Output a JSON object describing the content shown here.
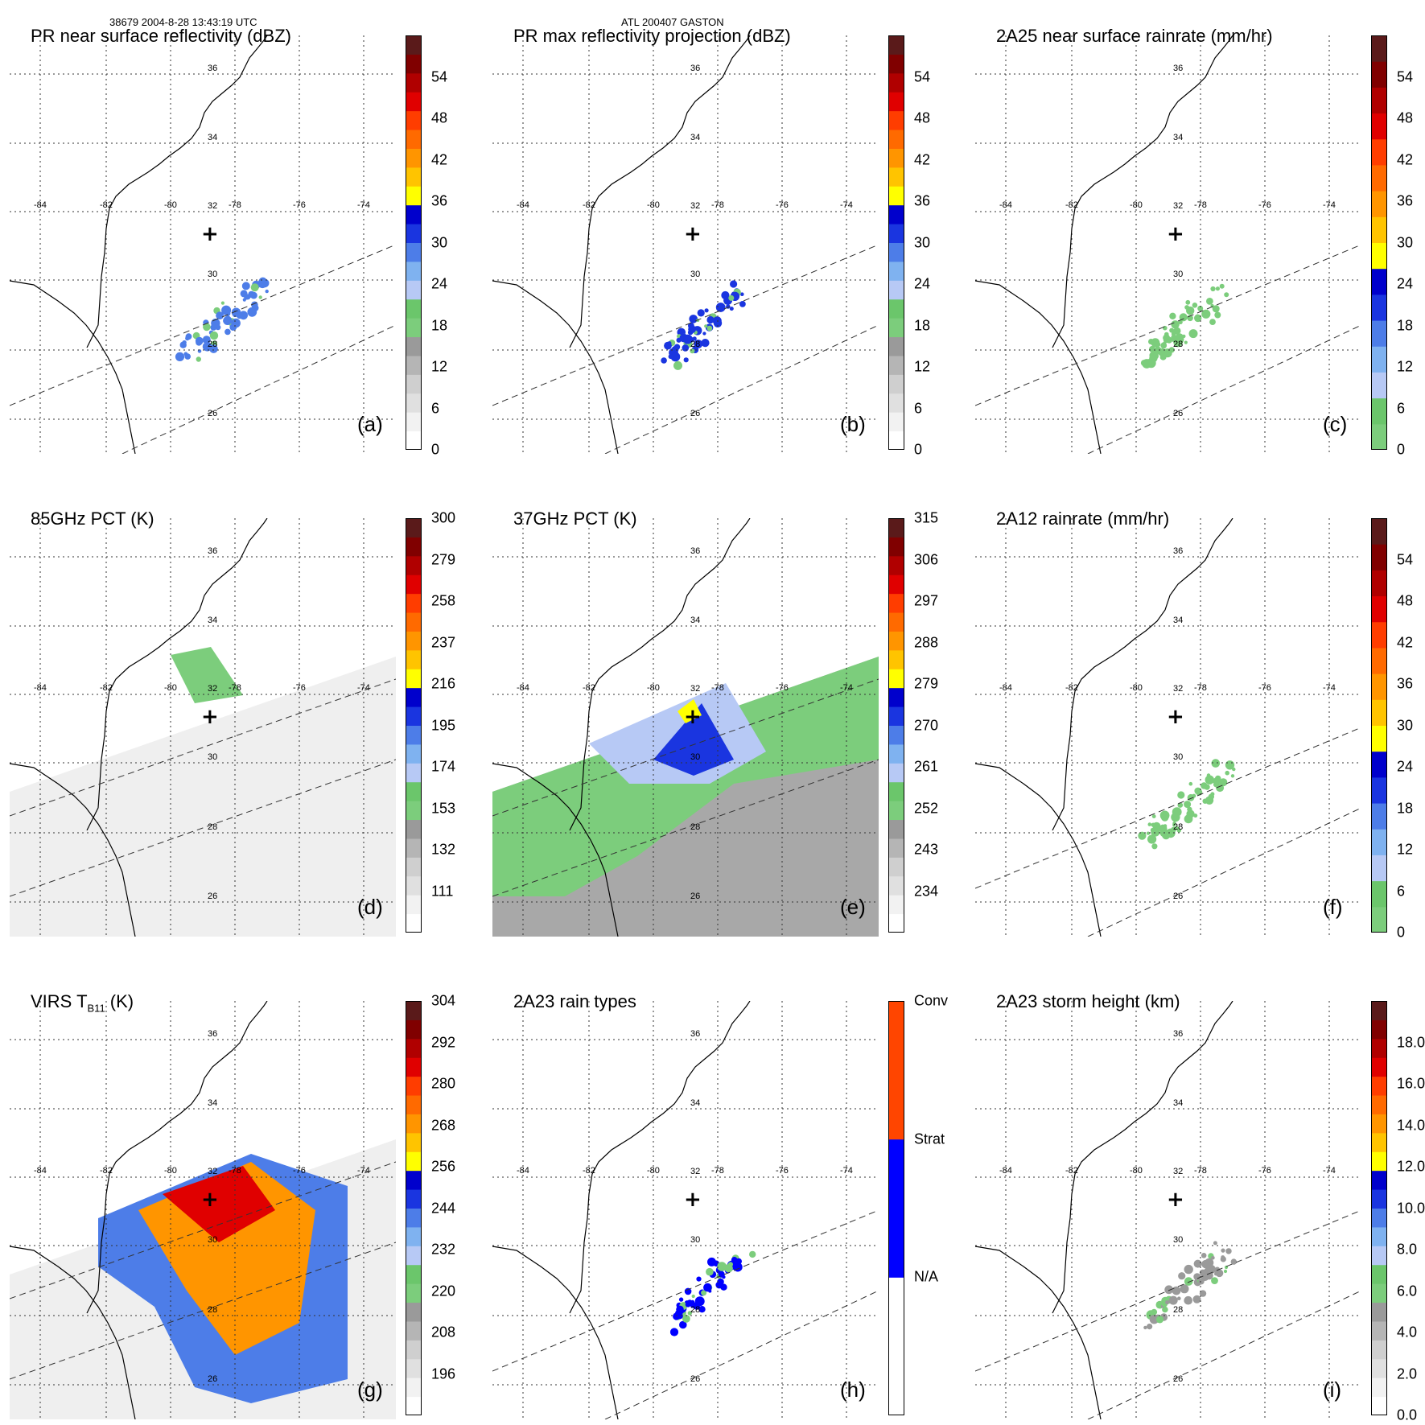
{
  "header": {
    "orbit_time": "38679 2004-8-28 13:43:19 UTC",
    "storm_id": "ATL 200407 GASTON"
  },
  "map": {
    "lon_labels": [
      "-84",
      "-82",
      "-80",
      "-78",
      "-76",
      "-74"
    ],
    "lat_labels": [
      "36",
      "34",
      "32",
      "30",
      "28",
      "26"
    ],
    "center_marker": "+"
  },
  "chart_data": [
    {
      "type": "heatmap",
      "letter": "(a)",
      "title": "PR near surface reflectivity (dBZ)",
      "colorbar": {
        "ticks": [
          "54",
          "48",
          "42",
          "36",
          "30",
          "24",
          "18",
          "12",
          "6",
          "0"
        ],
        "tick_values": [
          54,
          48,
          42,
          36,
          30,
          24,
          18,
          12,
          6,
          0
        ],
        "range": [
          0,
          60
        ],
        "colors": [
          "#ffffff",
          "#f2f2f2",
          "#e0e0e0",
          "#cfcfcf",
          "#b5b5b5",
          "#9a9a9a",
          "#7ccd7c",
          "#6bc66b",
          "#b7c9f5",
          "#7fb2f0",
          "#4d7de8",
          "#1a35e0",
          "#0000cc",
          "#ffff00",
          "#ffc400",
          "#ff9500",
          "#ff6a00",
          "#ff3d00",
          "#e00000",
          "#b00000",
          "#800000",
          "#5a1a1a"
        ]
      }
    },
    {
      "type": "heatmap",
      "letter": "(b)",
      "title": "PR max reflectivity projection (dBZ)",
      "colorbar": {
        "ticks": [
          "54",
          "48",
          "42",
          "36",
          "30",
          "24",
          "18",
          "12",
          "6",
          "0"
        ],
        "tick_values": [
          54,
          48,
          42,
          36,
          30,
          24,
          18,
          12,
          6,
          0
        ],
        "range": [
          0,
          60
        ],
        "colors": [
          "#ffffff",
          "#f2f2f2",
          "#e0e0e0",
          "#cfcfcf",
          "#b5b5b5",
          "#9a9a9a",
          "#7ccd7c",
          "#6bc66b",
          "#b7c9f5",
          "#7fb2f0",
          "#4d7de8",
          "#1a35e0",
          "#0000cc",
          "#ffff00",
          "#ffc400",
          "#ff9500",
          "#ff6a00",
          "#ff3d00",
          "#e00000",
          "#b00000",
          "#800000",
          "#5a1a1a"
        ]
      }
    },
    {
      "type": "heatmap",
      "letter": "(c)",
      "title": "2A25 near surface rainrate (mm/hr)",
      "colorbar": {
        "ticks": [
          "54",
          "48",
          "42",
          "36",
          "30",
          "24",
          "18",
          "12",
          "6",
          "0"
        ],
        "tick_values": [
          54,
          48,
          42,
          36,
          30,
          24,
          18,
          12,
          6,
          0
        ],
        "range": [
          0,
          60
        ],
        "colors": [
          "#7ccd7c",
          "#6bc66b",
          "#b7c9f5",
          "#7fb2f0",
          "#4d7de8",
          "#1a35e0",
          "#0000cc",
          "#ffff00",
          "#ffc400",
          "#ff9500",
          "#ff6a00",
          "#ff3d00",
          "#e00000",
          "#b00000",
          "#800000",
          "#5a1a1a"
        ]
      }
    },
    {
      "type": "heatmap",
      "letter": "(d)",
      "title": "85GHz PCT (K)",
      "colorbar": {
        "ticks": [
          "111",
          "132",
          "153",
          "174",
          "195",
          "216",
          "237",
          "258",
          "279",
          "300"
        ],
        "tick_values": [
          111,
          132,
          153,
          174,
          195,
          216,
          237,
          258,
          279,
          300
        ],
        "range": [
          90,
          300
        ],
        "colors": [
          "#ffffff",
          "#f2f2f2",
          "#e0e0e0",
          "#cfcfcf",
          "#b5b5b5",
          "#9a9a9a",
          "#7ccd7c",
          "#6bc66b",
          "#b7c9f5",
          "#7fb2f0",
          "#4d7de8",
          "#1a35e0",
          "#0000cc",
          "#ffff00",
          "#ffc400",
          "#ff9500",
          "#ff6a00",
          "#ff3d00",
          "#e00000",
          "#b00000",
          "#800000",
          "#5a1a1a"
        ]
      }
    },
    {
      "type": "heatmap",
      "letter": "(e)",
      "title": "37GHz PCT (K)",
      "colorbar": {
        "ticks": [
          "234",
          "243",
          "252",
          "261",
          "270",
          "279",
          "288",
          "297",
          "306",
          "315"
        ],
        "tick_values": [
          234,
          243,
          252,
          261,
          270,
          279,
          288,
          297,
          306,
          315
        ],
        "range": [
          225,
          315
        ],
        "colors": [
          "#ffffff",
          "#f2f2f2",
          "#e0e0e0",
          "#cfcfcf",
          "#b5b5b5",
          "#9a9a9a",
          "#7ccd7c",
          "#6bc66b",
          "#b7c9f5",
          "#7fb2f0",
          "#4d7de8",
          "#1a35e0",
          "#0000cc",
          "#ffff00",
          "#ffc400",
          "#ff9500",
          "#ff6a00",
          "#ff3d00",
          "#e00000",
          "#b00000",
          "#800000",
          "#5a1a1a"
        ]
      }
    },
    {
      "type": "heatmap",
      "letter": "(f)",
      "title": "2A12 rainrate (mm/hr)",
      "colorbar": {
        "ticks": [
          "54",
          "48",
          "42",
          "36",
          "30",
          "24",
          "18",
          "12",
          "6",
          "0"
        ],
        "tick_values": [
          54,
          48,
          42,
          36,
          30,
          24,
          18,
          12,
          6,
          0
        ],
        "range": [
          0,
          60
        ],
        "colors": [
          "#7ccd7c",
          "#6bc66b",
          "#b7c9f5",
          "#7fb2f0",
          "#4d7de8",
          "#1a35e0",
          "#0000cc",
          "#ffff00",
          "#ffc400",
          "#ff9500",
          "#ff6a00",
          "#ff3d00",
          "#e00000",
          "#b00000",
          "#800000",
          "#5a1a1a"
        ]
      }
    },
    {
      "type": "heatmap",
      "letter": "(g)",
      "title_main": "VIRS T",
      "title_sub": "B11",
      "title_unit": " (K)",
      "colorbar": {
        "ticks": [
          "196",
          "208",
          "220",
          "232",
          "244",
          "256",
          "268",
          "280",
          "292",
          "304"
        ],
        "tick_values": [
          196,
          208,
          220,
          232,
          244,
          256,
          268,
          280,
          292,
          304
        ],
        "range": [
          184,
          304
        ],
        "colors": [
          "#ffffff",
          "#f2f2f2",
          "#e0e0e0",
          "#cfcfcf",
          "#b5b5b5",
          "#9a9a9a",
          "#7ccd7c",
          "#6bc66b",
          "#b7c9f5",
          "#7fb2f0",
          "#4d7de8",
          "#1a35e0",
          "#0000cc",
          "#ffff00",
          "#ffc400",
          "#ff9500",
          "#ff6a00",
          "#ff3d00",
          "#e00000",
          "#b00000",
          "#800000",
          "#5a1a1a"
        ]
      }
    },
    {
      "type": "heatmap",
      "letter": "(h)",
      "title": "2A23 rain types",
      "colorbar": {
        "ticks": [
          "Conv",
          "Strat",
          "N/A"
        ],
        "tick_values": [
          3,
          2,
          1
        ],
        "range": [
          0,
          3
        ],
        "colors": [
          "#ffffff",
          "#0000ff",
          "#ff4500"
        ]
      }
    },
    {
      "type": "heatmap",
      "letter": "(i)",
      "title": "2A23 storm height (km)",
      "colorbar": {
        "ticks": [
          "18.0",
          "16.0",
          "14.0",
          "12.0",
          "10.0",
          "8.0",
          "6.0",
          "4.0",
          "2.0",
          "0.0"
        ],
        "tick_values": [
          18,
          16,
          14,
          12,
          10,
          8,
          6,
          4,
          2,
          0
        ],
        "range": [
          0,
          20
        ],
        "colors": [
          "#ffffff",
          "#f2f2f2",
          "#e0e0e0",
          "#cfcfcf",
          "#b5b5b5",
          "#9a9a9a",
          "#7ccd7c",
          "#6bc66b",
          "#b7c9f5",
          "#7fb2f0",
          "#4d7de8",
          "#1a35e0",
          "#0000cc",
          "#ffff00",
          "#ffc400",
          "#ff9500",
          "#ff6a00",
          "#ff3d00",
          "#e00000",
          "#b00000",
          "#800000",
          "#5a1a1a"
        ]
      }
    }
  ]
}
